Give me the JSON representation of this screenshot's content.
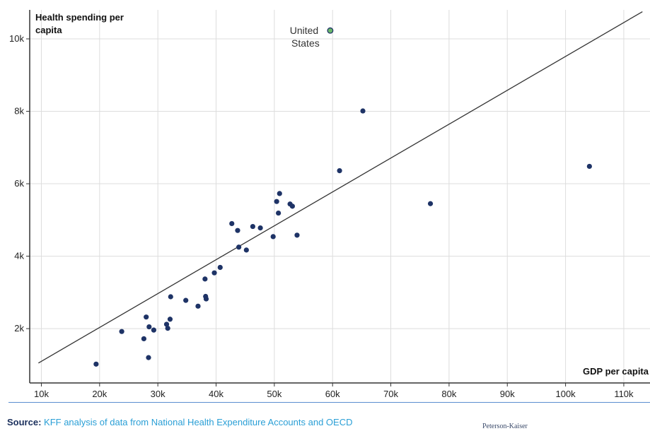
{
  "chart_data": {
    "type": "scatter",
    "ylabel": "Health spending per capita",
    "xlabel": "GDP per capita",
    "xlim": [
      8000,
      114500
    ],
    "ylim": [
      500,
      10800
    ],
    "x_ticks": [
      10000,
      20000,
      30000,
      40000,
      50000,
      60000,
      70000,
      80000,
      90000,
      100000,
      110000
    ],
    "x_tick_labels": [
      "10k",
      "20k",
      "30k",
      "40k",
      "50k",
      "60k",
      "70k",
      "80k",
      "90k",
      "100k",
      "110k"
    ],
    "y_ticks": [
      2000,
      4000,
      6000,
      8000,
      10000
    ],
    "y_tick_labels": [
      "2k",
      "4k",
      "6k",
      "8k",
      "10k"
    ],
    "grid": true,
    "trend_line": {
      "start": [
        9500,
        1050
      ],
      "end": [
        113200,
        10750
      ]
    },
    "highlight": {
      "label_lines": [
        "United",
        "States"
      ],
      "x": 59600,
      "y": 10230,
      "color": "#6ab86a"
    },
    "point_color": "#1e3366",
    "points": [
      {
        "x": 19400,
        "y": 1020
      },
      {
        "x": 23800,
        "y": 1920
      },
      {
        "x": 27600,
        "y": 1720
      },
      {
        "x": 28000,
        "y": 2320
      },
      {
        "x": 28400,
        "y": 1200
      },
      {
        "x": 28500,
        "y": 2050
      },
      {
        "x": 29300,
        "y": 1960
      },
      {
        "x": 31500,
        "y": 2120
      },
      {
        "x": 31700,
        "y": 2010
      },
      {
        "x": 32100,
        "y": 2260
      },
      {
        "x": 32200,
        "y": 2880
      },
      {
        "x": 34800,
        "y": 2780
      },
      {
        "x": 36900,
        "y": 2620
      },
      {
        "x": 38100,
        "y": 3370
      },
      {
        "x": 38200,
        "y": 2890
      },
      {
        "x": 38300,
        "y": 2820
      },
      {
        "x": 39700,
        "y": 3540
      },
      {
        "x": 40700,
        "y": 3690
      },
      {
        "x": 42700,
        "y": 4900
      },
      {
        "x": 43700,
        "y": 4710
      },
      {
        "x": 43900,
        "y": 4250
      },
      {
        "x": 45200,
        "y": 4170
      },
      {
        "x": 46300,
        "y": 4820
      },
      {
        "x": 47600,
        "y": 4780
      },
      {
        "x": 49800,
        "y": 4540
      },
      {
        "x": 50400,
        "y": 5510
      },
      {
        "x": 50700,
        "y": 5190
      },
      {
        "x": 50900,
        "y": 5730
      },
      {
        "x": 52700,
        "y": 5440
      },
      {
        "x": 53100,
        "y": 5380
      },
      {
        "x": 53900,
        "y": 4580
      },
      {
        "x": 61200,
        "y": 6360
      },
      {
        "x": 65200,
        "y": 8010
      },
      {
        "x": 76800,
        "y": 5450
      },
      {
        "x": 104100,
        "y": 6480
      }
    ]
  },
  "footer": {
    "source_prefix": "Source:",
    "source_text": "KFF analysis of data from National Health Expenditure Accounts and OECD",
    "brand": "Peterson-Kaiser"
  }
}
